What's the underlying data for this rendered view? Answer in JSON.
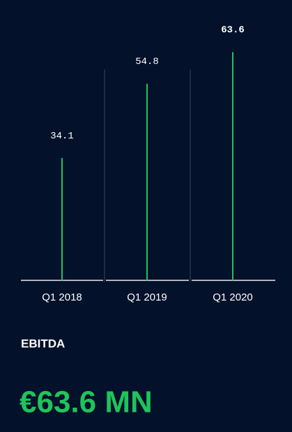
{
  "chart_data": {
    "type": "bar",
    "categories": [
      "Q1 2018",
      "Q1 2019",
      "Q1 2020"
    ],
    "values": [
      34.1,
      54.8,
      63.6
    ],
    "color": "#1fc45a",
    "label": "EBITDA",
    "headline": "€63.6 MN"
  }
}
